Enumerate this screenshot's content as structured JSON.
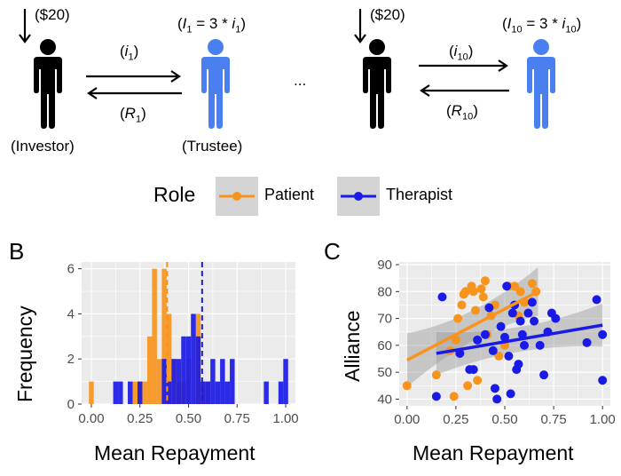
{
  "diagram": {
    "endowment_1": "($20)",
    "investment_1": "(i1)",
    "repayment_1": "(R1)",
    "trustee_formula_1": "(I1 = 3 * i1)",
    "investor_label": "(Investor)",
    "trustee_label": "(Trustee)",
    "ellipsis": "...",
    "endowment_10": "($20)",
    "investment_10": "(i10)",
    "repayment_10": "(R10)",
    "trustee_formula_10": "(I10 = 3 * i10)"
  },
  "legend": {
    "title": "Role",
    "items": [
      {
        "label": "Patient",
        "color": "#F7941D"
      },
      {
        "label": "Therapist",
        "color": "#1A1AE6"
      }
    ]
  },
  "colors": {
    "investor": "#000000",
    "trustee": "#4A7FF0",
    "patient": "#F7941D",
    "therapist": "#1A1AE6",
    "panel_bg": "#EBEBEB"
  },
  "panel_b": {
    "letter": "B"
  },
  "panel_c": {
    "letter": "C"
  },
  "chart_data": [
    {
      "type": "bar",
      "panel": "B",
      "xlabel": "Mean Repayment",
      "ylabel": "Frequency",
      "xlim": [
        -0.05,
        1.05
      ],
      "ylim": [
        0,
        6.3
      ],
      "xticks": [
        "0.00",
        "0.25",
        "0.50",
        "0.75",
        "1.00"
      ],
      "yticks": [
        "0",
        "2",
        "4",
        "6"
      ],
      "bin_width": 0.025,
      "series": [
        {
          "name": "Patient",
          "bins": [
            [
              0.0,
              1
            ],
            [
              0.225,
              1
            ],
            [
              0.25,
              1
            ],
            [
              0.275,
              1
            ],
            [
              0.3,
              3
            ],
            [
              0.325,
              6
            ],
            [
              0.35,
              2
            ],
            [
              0.375,
              6
            ],
            [
              0.4,
              4
            ],
            [
              0.425,
              2
            ],
            [
              0.45,
              1
            ],
            [
              0.475,
              1
            ],
            [
              0.5,
              2
            ],
            [
              0.55,
              4
            ],
            [
              0.575,
              1
            ],
            [
              0.6,
              1
            ]
          ]
        },
        {
          "name": "Therapist",
          "bins": [
            [
              0.125,
              1
            ],
            [
              0.15,
              1
            ],
            [
              0.2,
              1
            ],
            [
              0.25,
              1
            ],
            [
              0.375,
              2
            ],
            [
              0.4,
              1
            ],
            [
              0.425,
              2
            ],
            [
              0.45,
              2
            ],
            [
              0.475,
              3
            ],
            [
              0.5,
              3
            ],
            [
              0.525,
              4
            ],
            [
              0.55,
              3
            ],
            [
              0.575,
              1
            ],
            [
              0.6,
              1
            ],
            [
              0.625,
              2
            ],
            [
              0.65,
              1
            ],
            [
              0.675,
              2
            ],
            [
              0.7,
              1
            ],
            [
              0.725,
              2
            ],
            [
              0.9,
              1
            ],
            [
              0.975,
              1
            ],
            [
              1.0,
              2
            ]
          ]
        }
      ],
      "mean_lines": [
        {
          "name": "Patient",
          "x": 0.39
        },
        {
          "name": "Therapist",
          "x": 0.57
        }
      ]
    },
    {
      "type": "scatter",
      "panel": "C",
      "xlabel": "Mean Repayment",
      "ylabel": "Alliance",
      "xlim": [
        -0.04,
        1.04
      ],
      "ylim": [
        37.5,
        91
      ],
      "xticks": [
        "0.00",
        "0.25",
        "0.50",
        "0.75",
        "1.00"
      ],
      "yticks": [
        "40",
        "50",
        "60",
        "70",
        "80",
        "90"
      ],
      "series": [
        {
          "name": "Patient",
          "points": [
            [
              0.0,
              45
            ],
            [
              0.15,
              49
            ],
            [
              0.22,
              58
            ],
            [
              0.24,
              41
            ],
            [
              0.25,
              62
            ],
            [
              0.26,
              70
            ],
            [
              0.28,
              75
            ],
            [
              0.29,
              79
            ],
            [
              0.3,
              80
            ],
            [
              0.31,
              45
            ],
            [
              0.33,
              82
            ],
            [
              0.34,
              80
            ],
            [
              0.35,
              73
            ],
            [
              0.36,
              47
            ],
            [
              0.38,
              81
            ],
            [
              0.39,
              78
            ],
            [
              0.4,
              84
            ],
            [
              0.41,
              64
            ],
            [
              0.43,
              71
            ],
            [
              0.45,
              75
            ],
            [
              0.47,
              56
            ],
            [
              0.5,
              60
            ],
            [
              0.52,
              82
            ],
            [
              0.55,
              82
            ],
            [
              0.57,
              71
            ],
            [
              0.58,
              80
            ],
            [
              0.6,
              76
            ],
            [
              0.62,
              72
            ],
            [
              0.64,
              83
            ],
            [
              0.66,
              80
            ]
          ]
        },
        {
          "name": "Therapist",
          "points": [
            [
              0.15,
              41
            ],
            [
              0.18,
              78
            ],
            [
              0.27,
              57
            ],
            [
              0.32,
              51
            ],
            [
              0.34,
              51
            ],
            [
              0.36,
              62
            ],
            [
              0.4,
              64
            ],
            [
              0.42,
              74
            ],
            [
              0.44,
              58
            ],
            [
              0.45,
              44
            ],
            [
              0.46,
              40
            ],
            [
              0.48,
              67
            ],
            [
              0.5,
              63
            ],
            [
              0.51,
              82
            ],
            [
              0.52,
              56
            ],
            [
              0.53,
              42
            ],
            [
              0.54,
              72
            ],
            [
              0.55,
              75
            ],
            [
              0.56,
              51
            ],
            [
              0.57,
              53
            ],
            [
              0.58,
              69
            ],
            [
              0.59,
              64
            ],
            [
              0.6,
              60
            ],
            [
              0.62,
              72
            ],
            [
              0.64,
              76
            ],
            [
              0.65,
              69
            ],
            [
              0.68,
              60
            ],
            [
              0.7,
              49
            ],
            [
              0.72,
              65
            ],
            [
              0.74,
              72
            ],
            [
              0.76,
              70
            ],
            [
              0.92,
              61
            ],
            [
              0.97,
              77
            ],
            [
              1.0,
              64
            ],
            [
              1.0,
              47
            ]
          ]
        }
      ],
      "fits": [
        {
          "name": "Patient",
          "x": [
            0.0,
            0.67
          ],
          "y": [
            54.5,
            80.0
          ]
        },
        {
          "name": "Therapist",
          "x": [
            0.15,
            1.0
          ],
          "y": [
            57.0,
            67.5
          ]
        }
      ]
    }
  ]
}
